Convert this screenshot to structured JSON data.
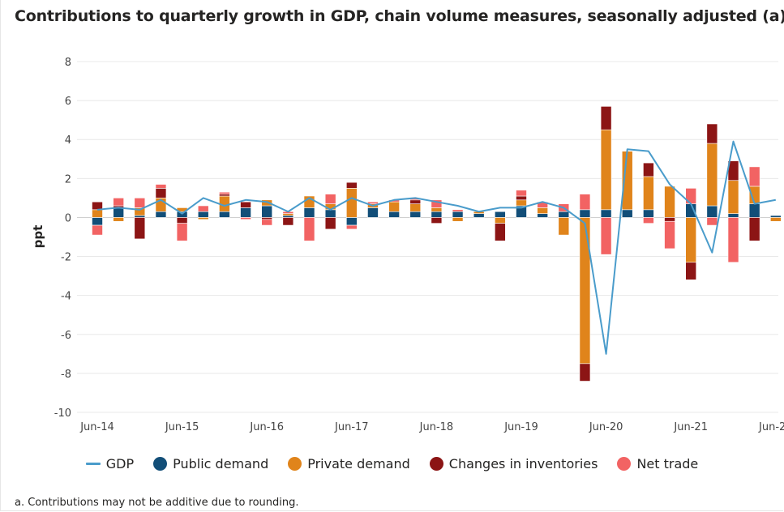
{
  "title": "Contributions to quarterly growth in GDP, chain volume measures, seasonally adjusted (a)",
  "footnote": "a. Contributions may not be additive due to rounding.",
  "legend": [
    {
      "label": "GDP",
      "kind": "line",
      "color": "#4a9ccb"
    },
    {
      "label": "Public demand",
      "kind": "dot",
      "color": "#124e78"
    },
    {
      "label": "Private demand",
      "kind": "dot",
      "color": "#e0841b"
    },
    {
      "label": "Changes in inventories",
      "kind": "dot",
      "color": "#8c1515"
    },
    {
      "label": "Net trade",
      "kind": "dot",
      "color": "#f26363"
    }
  ],
  "chart_data": {
    "type": "bar",
    "stacked": true,
    "title": "Contributions to quarterly growth in GDP, chain volume measures, seasonally adjusted (a)",
    "ylabel": "ppt",
    "ylim": [
      -10,
      8
    ],
    "yticks": [
      8,
      6,
      4,
      2,
      0,
      -2,
      -4,
      -6,
      -8,
      -10
    ],
    "grid": true,
    "legend_position": "bottom",
    "categories": [
      "Jun-14",
      "Sep-14",
      "Dec-14",
      "Mar-15",
      "Jun-15",
      "Sep-15",
      "Dec-15",
      "Mar-16",
      "Jun-16",
      "Sep-16",
      "Dec-16",
      "Mar-17",
      "Jun-17",
      "Sep-17",
      "Dec-17",
      "Mar-18",
      "Jun-18",
      "Sep-18",
      "Dec-18",
      "Mar-19",
      "Jun-19",
      "Sep-19",
      "Dec-19",
      "Mar-20",
      "Jun-20",
      "Sep-20",
      "Dec-20",
      "Mar-21",
      "Jun-21",
      "Sep-21",
      "Dec-21",
      "Mar-22",
      "Jun-22"
    ],
    "xtick_labels": [
      "Jun-14",
      "Jun-15",
      "Jun-16",
      "Jun-17",
      "Jun-18",
      "Jun-19",
      "Jun-20",
      "Jun-21",
      "Jun-22"
    ],
    "series": [
      {
        "name": "Public demand",
        "color": "#124e78",
        "values": [
          -0.4,
          0.5,
          0.1,
          0.3,
          0.3,
          0.3,
          0.3,
          0.5,
          0.6,
          0.1,
          0.5,
          0.4,
          -0.4,
          0.5,
          0.3,
          0.3,
          0.3,
          0.3,
          0.2,
          0.3,
          0.6,
          0.2,
          0.3,
          0.4,
          0.4,
          0.4,
          0.4,
          0.0,
          0.7,
          0.6,
          0.2,
          0.7,
          0.1
        ]
      },
      {
        "name": "Private demand",
        "color": "#e0841b",
        "values": [
          0.4,
          -0.2,
          0.4,
          0.7,
          0.2,
          -0.1,
          0.8,
          0.0,
          0.3,
          0.1,
          0.6,
          0.3,
          1.5,
          0.2,
          0.5,
          0.4,
          0.2,
          -0.2,
          0.1,
          -0.3,
          0.3,
          0.3,
          -0.9,
          -7.5,
          4.1,
          3.0,
          1.7,
          1.6,
          -2.3,
          3.2,
          1.7,
          0.9,
          -0.2
        ]
      },
      {
        "name": "Changes in inventories",
        "color": "#8c1515",
        "values": [
          0.4,
          0.1,
          -1.1,
          0.5,
          -0.3,
          0.0,
          0.1,
          0.3,
          -0.1,
          -0.4,
          0.0,
          -0.6,
          0.3,
          0.0,
          0.0,
          0.2,
          -0.3,
          0.0,
          0.0,
          -0.9,
          0.2,
          0.0,
          0.0,
          -0.9,
          1.2,
          0.0,
          0.7,
          -0.2,
          -0.9,
          1.0,
          1.0,
          -1.2,
          0.0
        ]
      },
      {
        "name": "Net trade",
        "color": "#f26363",
        "values": [
          -0.5,
          0.4,
          0.5,
          0.2,
          -0.9,
          0.3,
          0.1,
          -0.1,
          -0.3,
          0.1,
          -1.2,
          0.5,
          -0.2,
          0.1,
          0.1,
          0.1,
          0.4,
          0.1,
          0.0,
          0.0,
          0.3,
          0.3,
          0.4,
          0.8,
          -1.9,
          0.0,
          -0.3,
          -1.4,
          0.8,
          -0.4,
          -2.3,
          1.0,
          0.0
        ]
      },
      {
        "name": "GDP",
        "color": "#4a9ccb",
        "type": "line",
        "values": [
          0.4,
          0.5,
          0.4,
          0.9,
          0.2,
          1.0,
          0.6,
          0.9,
          0.8,
          0.3,
          1.0,
          0.4,
          1.0,
          0.6,
          0.9,
          1.0,
          0.8,
          0.6,
          0.3,
          0.5,
          0.5,
          0.8,
          0.5,
          -0.3,
          -7.0,
          3.5,
          3.4,
          1.7,
          0.7,
          -1.8,
          3.9,
          0.7,
          0.9
        ]
      }
    ]
  }
}
